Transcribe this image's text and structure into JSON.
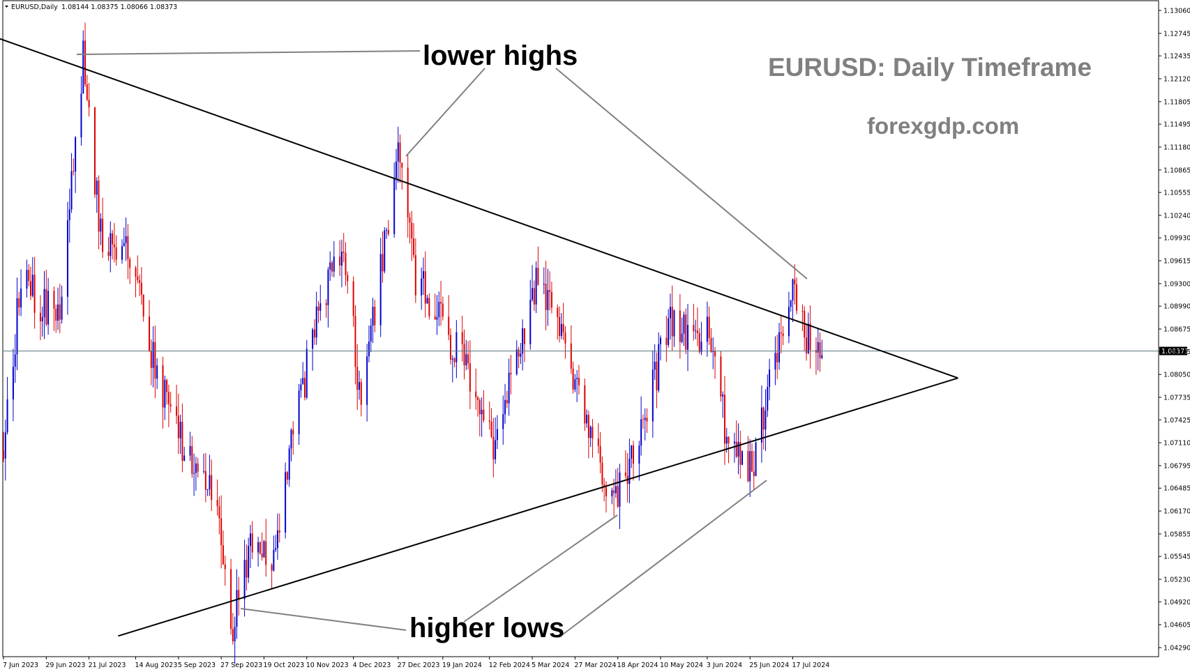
{
  "header": {
    "symbol": "EURUSD,Daily",
    "ohlc": "1.08144 1.08375 1.08066 1.08373"
  },
  "watermark": {
    "title": "EURUSD: Daily Timeframe",
    "site": "forexgdp.com"
  },
  "annotations": {
    "lower_highs": "lower highs",
    "higher_lows": "higher lows"
  },
  "colors": {
    "bull": "#0000cc",
    "bear": "#dd0000",
    "trendline": "#000000",
    "pointer": "#808080",
    "current_price_line": "#5a7680",
    "price_tag_bg": "#000000"
  },
  "chart_data": {
    "type": "candlestick",
    "symbol": "EURUSD",
    "timeframe": "Daily",
    "y_ticks": [
      "1.04290",
      "1.04605",
      "1.04920",
      "1.05230",
      "1.05545",
      "1.05855",
      "1.06170",
      "1.06485",
      "1.06795",
      "1.07110",
      "1.07425",
      "1.07735",
      "1.08050",
      "1.08365",
      "1.08675",
      "1.08990",
      "1.09300",
      "1.09615",
      "1.09930",
      "1.10240",
      "1.10555",
      "1.10865",
      "1.11180",
      "1.11495",
      "1.11805",
      "1.12120",
      "1.12435",
      "1.12745",
      "1.13060"
    ],
    "x_ticks": [
      "7 Jun 2023",
      "29 Jun 2023",
      "21 Jul 2023",
      "14 Aug 2023",
      "5 Sep 2023",
      "27 Sep 2023",
      "19 Oct 2023",
      "10 Nov 2023",
      "4 Dec 2023",
      "27 Dec 2023",
      "19 Jan 2024",
      "12 Feb 2024",
      "5 Mar 2024",
      "27 Mar 2024",
      "18 Apr 2024",
      "10 May 2024",
      "3 Jun 2024",
      "25 Jun 2024",
      "17 Jul 2024"
    ],
    "current_price": "1.08373",
    "anchors": [
      {
        "date": "2023-06-07",
        "close": 1.07
      },
      {
        "date": "2023-06-16",
        "close": 1.094
      },
      {
        "date": "2023-06-26",
        "close": 1.09
      },
      {
        "date": "2023-07-06",
        "close": 1.089
      },
      {
        "date": "2023-07-18",
        "close": 1.124
      },
      {
        "date": "2023-07-27",
        "close": 1.1
      },
      {
        "date": "2023-08-10",
        "close": 1.098
      },
      {
        "date": "2023-08-25",
        "close": 1.08
      },
      {
        "date": "2023-09-08",
        "close": 1.07
      },
      {
        "date": "2023-09-22",
        "close": 1.065
      },
      {
        "date": "2023-10-03",
        "close": 1.046
      },
      {
        "date": "2023-10-12",
        "close": 1.056
      },
      {
        "date": "2023-10-24",
        "close": 1.056
      },
      {
        "date": "2023-11-03",
        "close": 1.072
      },
      {
        "date": "2023-11-15",
        "close": 1.088
      },
      {
        "date": "2023-11-29",
        "close": 1.099
      },
      {
        "date": "2023-12-08",
        "close": 1.076
      },
      {
        "date": "2023-12-20",
        "close": 1.099
      },
      {
        "date": "2023-12-28",
        "close": 1.112
      },
      {
        "date": "2024-01-05",
        "close": 1.094
      },
      {
        "date": "2024-01-17",
        "close": 1.088
      },
      {
        "date": "2024-02-01",
        "close": 1.081
      },
      {
        "date": "2024-02-14",
        "close": 1.071
      },
      {
        "date": "2024-03-08",
        "close": 1.094
      },
      {
        "date": "2024-03-20",
        "close": 1.087
      },
      {
        "date": "2024-04-02",
        "close": 1.074
      },
      {
        "date": "2024-04-16",
        "close": 1.062
      },
      {
        "date": "2024-05-03",
        "close": 1.076
      },
      {
        "date": "2024-05-15",
        "close": 1.088
      },
      {
        "date": "2024-05-30",
        "close": 1.084
      },
      {
        "date": "2024-06-04",
        "close": 1.088
      },
      {
        "date": "2024-06-14",
        "close": 1.07
      },
      {
        "date": "2024-06-26",
        "close": 1.068
      },
      {
        "date": "2024-07-08",
        "close": 1.083
      },
      {
        "date": "2024-07-17",
        "close": 1.092
      },
      {
        "date": "2024-07-26",
        "close": 1.084
      },
      {
        "date": "2024-08-01",
        "close": 1.082
      }
    ],
    "trendlines": [
      {
        "name": "descending resistance",
        "from": {
          "date": "2023-06-02",
          "price": 1.127
        },
        "to": {
          "date": "2024-10-10",
          "price": 1.08
        }
      },
      {
        "name": "ascending support",
        "from": {
          "date": "2023-08-05",
          "price": 1.0445
        },
        "to": {
          "date": "2024-10-10",
          "price": 1.08
        }
      }
    ]
  }
}
